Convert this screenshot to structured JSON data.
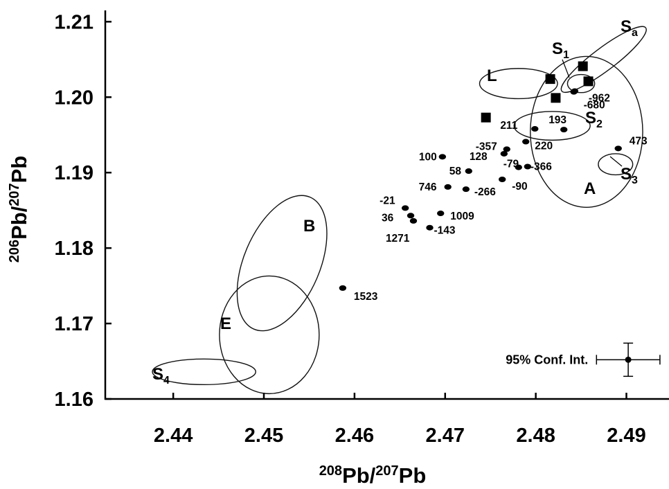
{
  "chart_data": {
    "type": "scatter",
    "title": "",
    "xlabel": {
      "sup": "208",
      "base": "Pb/",
      "sup2": "207",
      "base2": "Pb"
    },
    "ylabel": {
      "sup": "206",
      "base": "Pb/",
      "sup2": "207",
      "base2": "Pb"
    },
    "xlim": [
      2.4325,
      2.4947
    ],
    "ylim": [
      1.16,
      1.2115
    ],
    "xticks": [
      "2.44",
      "2.45",
      "2.46",
      "2.47",
      "2.48",
      "2.49"
    ],
    "yticks": [
      "1.16",
      "1.17",
      "1.18",
      "1.19",
      "1.20",
      "1.21"
    ],
    "grid": false,
    "points": [
      {
        "label": "100",
        "x": 2.4697,
        "y": 1.1921
      },
      {
        "label": "58",
        "x": 2.4726,
        "y": 1.1902
      },
      {
        "label": "746",
        "x": 2.4703,
        "y": 1.1881
      },
      {
        "label": "-266",
        "x": 2.4723,
        "y": 1.1878
      },
      {
        "label": "-21",
        "x": 2.4656,
        "y": 1.1853
      },
      {
        "label": "36",
        "x": 2.4662,
        "y": 1.1843
      },
      {
        "label": "1271",
        "x": 2.4665,
        "y": 1.1836
      },
      {
        "label": "1009",
        "x": 2.4695,
        "y": 1.1846
      },
      {
        "label": "-143",
        "x": 2.4683,
        "y": 1.1827
      },
      {
        "label": "1523",
        "x": 2.4587,
        "y": 1.1747
      },
      {
        "label": "-357",
        "x": 2.4768,
        "y": 1.1931
      },
      {
        "label": "128",
        "x": 2.4765,
        "y": 1.1925
      },
      {
        "label": "-90",
        "x": 2.4763,
        "y": 1.1891
      },
      {
        "label": "-79",
        "x": 2.4781,
        "y": 1.1907
      },
      {
        "label": "-366",
        "x": 2.4791,
        "y": 1.1908
      },
      {
        "label": "211",
        "x": 2.4799,
        "y": 1.1958
      },
      {
        "label": "220",
        "x": 2.4789,
        "y": 1.1941
      },
      {
        "label": "193",
        "x": 2.4831,
        "y": 1.1957
      },
      {
        "label": "473",
        "x": 2.4891,
        "y": 1.1932
      },
      {
        "label": "-962",
        "x": 2.4843,
        "y": 1.2008
      },
      {
        "label": "-680",
        "x": 2.4842,
        "y": 1.2007
      }
    ],
    "squares": [
      {
        "x": 2.4745,
        "y": 1.1973
      },
      {
        "x": 2.4816,
        "y": 1.2024
      },
      {
        "x": 2.4852,
        "y": 1.2041
      },
      {
        "x": 2.4858,
        "y": 1.2021
      },
      {
        "x": 2.4822,
        "y": 1.1999
      }
    ],
    "regions": [
      {
        "label": "A",
        "sub": "",
        "cx": 2.4856,
        "cy": 1.1954,
        "rx": 0.0062,
        "ry": 0.01,
        "rot": 0
      },
      {
        "label": "L",
        "sub": "",
        "cx": 2.4781,
        "cy": 1.2018,
        "rx": 0.0043,
        "ry": 0.002,
        "rot": 0
      },
      {
        "label": "S",
        "sub": "a",
        "cx": 2.4875,
        "cy": 1.205,
        "rx": 0.0058,
        "ry": 0.0015,
        "rot": -37
      },
      {
        "label": "S",
        "sub": "1",
        "cx": 2.485,
        "cy": 1.2018,
        "rx": 0.0015,
        "ry": 0.0012,
        "rot": 0
      },
      {
        "label": "S",
        "sub": "2",
        "cx": 2.4818,
        "cy": 1.1962,
        "rx": 0.0042,
        "ry": 0.0019,
        "rot": 0
      },
      {
        "label": "S",
        "sub": "3",
        "cx": 2.4888,
        "cy": 1.1911,
        "rx": 0.0019,
        "ry": 0.0014,
        "rot": 0
      },
      {
        "label": "B",
        "sub": "",
        "cx": 2.452,
        "cy": 1.178,
        "rx": 0.0042,
        "ry": 0.0095,
        "rot": 23
      },
      {
        "label": "E",
        "sub": "",
        "cx": 2.4506,
        "cy": 1.1685,
        "rx": 0.0055,
        "ry": 0.0078,
        "rot": 0
      },
      {
        "label": "S",
        "sub": "4",
        "cx": 2.4434,
        "cy": 1.1636,
        "rx": 0.0057,
        "ry": 0.0017,
        "rot": 0
      }
    ],
    "confidence_interval": {
      "label": "95% Conf. Int.",
      "x": 2.4902,
      "y": 1.1652,
      "xerr": 0.0035,
      "yerr": 0.0022
    }
  }
}
